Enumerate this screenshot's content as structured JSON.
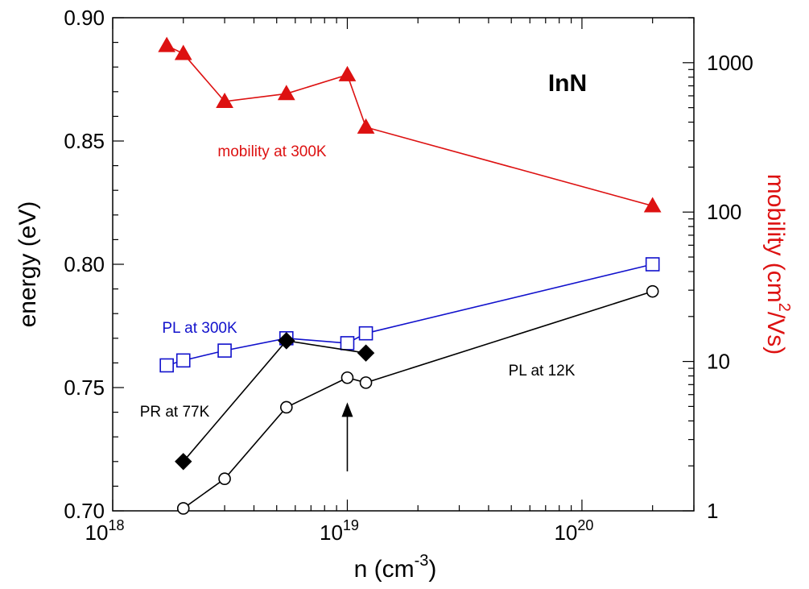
{
  "chart_data": {
    "type": "line",
    "title": "InN",
    "x_axis": {
      "label": "n (cm",
      "label_sup": "-3",
      "label_end": ")",
      "scale": "log",
      "range": [
        1e+18,
        3e+20
      ],
      "ticks": [
        {
          "value": 1e+18,
          "base": "10",
          "exp": "18"
        },
        {
          "value": 1e+19,
          "base": "10",
          "exp": "19"
        },
        {
          "value": 1e+20,
          "base": "10",
          "exp": "20"
        }
      ]
    },
    "y_left": {
      "label": "energy (eV)",
      "range": [
        0.7,
        0.9
      ],
      "ticks": [
        "0.70",
        "0.75",
        "0.80",
        "0.85",
        "0.90"
      ],
      "color": "#000000"
    },
    "y_right": {
      "label": "mobility (cm",
      "label_sup": "2",
      "label_end": "/Vs)",
      "scale": "log",
      "range": [
        1,
        2000
      ],
      "ticks": [
        "1",
        "10",
        "100",
        "1000"
      ],
      "color": "#dd1111"
    },
    "series": [
      {
        "name": "mobility at 300K",
        "axis": "right",
        "marker": "triangle",
        "color": "#dd1111",
        "x": [
          1.7e+18,
          2e+18,
          3e+18,
          5.5e+18,
          1e+19,
          1.2e+19,
          2e+20
        ],
        "y": [
          1300,
          1150,
          550,
          620,
          830,
          370,
          110
        ]
      },
      {
        "name": "PL at 300K",
        "axis": "left",
        "marker": "open-square",
        "color": "#1111cc",
        "x": [
          1.7e+18,
          2e+18,
          3e+18,
          5.5e+18,
          1e+19,
          1.2e+19,
          2e+20
        ],
        "y": [
          0.759,
          0.761,
          0.765,
          0.77,
          0.768,
          0.772,
          0.8
        ]
      },
      {
        "name": "PR at 77K",
        "axis": "left",
        "marker": "filled-diamond",
        "color": "#000000",
        "x": [
          2e+18,
          5.5e+18,
          1.2e+19
        ],
        "y": [
          0.72,
          0.769,
          0.764
        ]
      },
      {
        "name": "PL at 12K",
        "axis": "left",
        "marker": "open-circle",
        "color": "#000000",
        "x": [
          2e+18,
          3e+18,
          5.5e+18,
          1e+19,
          1.2e+19,
          2e+20
        ],
        "y": [
          0.701,
          0.713,
          0.742,
          0.754,
          0.752,
          0.789
        ]
      }
    ],
    "annotations": [
      {
        "text": "mobility at 300K",
        "color": "#dd1111"
      },
      {
        "text": "PL at 300K",
        "color": "#1111cc"
      },
      {
        "text": "PR at 77K",
        "color": "#000000"
      },
      {
        "text": "PL at 12K",
        "color": "#000000"
      }
    ],
    "arrow": {
      "x": 1e+19,
      "y_from": 0.716,
      "y_to": 0.744
    },
    "grid": false,
    "legend": "none"
  }
}
